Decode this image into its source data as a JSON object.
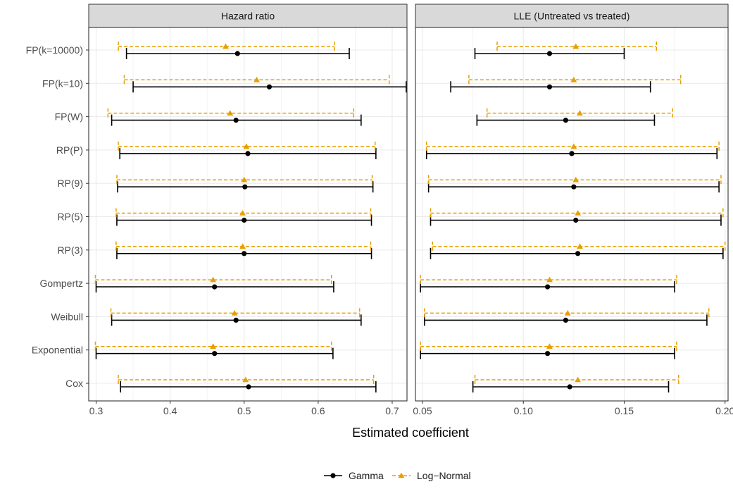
{
  "chart_data": {
    "type": "errorbar",
    "xlabel": "Estimated coefficient",
    "categories": [
      "FP(k=10000)",
      "FP(k=10)",
      "FP(W)",
      "RP(P)",
      "RP(9)",
      "RP(5)",
      "RP(3)",
      "Gompertz",
      "Weibull",
      "Exponential",
      "Cox"
    ],
    "legend": {
      "placement": "bottom",
      "entries": [
        {
          "name": "Gamma",
          "color": "#000000",
          "marker": "circle",
          "line": "solid"
        },
        {
          "name": "Log−Normal",
          "color": "#E69F00",
          "marker": "triangle",
          "line": "dashed"
        }
      ]
    },
    "panels": [
      {
        "strip": "Hazard ratio",
        "xlim": [
          0.29,
          0.72
        ],
        "ticks": [
          0.3,
          0.4,
          0.5,
          0.6,
          0.7
        ],
        "tick_labels": [
          "0.3",
          "0.4",
          "0.5",
          "0.6",
          "0.7"
        ],
        "series": [
          {
            "name": "Gamma",
            "values": [
              {
                "est": 0.491,
                "lo": 0.341,
                "hi": 0.642
              },
              {
                "est": 0.534,
                "lo": 0.35,
                "hi": 0.719
              },
              {
                "est": 0.489,
                "lo": 0.321,
                "hi": 0.658
              },
              {
                "est": 0.505,
                "lo": 0.332,
                "hi": 0.678
              },
              {
                "est": 0.501,
                "lo": 0.329,
                "hi": 0.674
              },
              {
                "est": 0.5,
                "lo": 0.328,
                "hi": 0.672
              },
              {
                "est": 0.5,
                "lo": 0.328,
                "hi": 0.672
              },
              {
                "est": 0.46,
                "lo": 0.3,
                "hi": 0.621
              },
              {
                "est": 0.489,
                "lo": 0.321,
                "hi": 0.658
              },
              {
                "est": 0.46,
                "lo": 0.3,
                "hi": 0.62
              },
              {
                "est": 0.506,
                "lo": 0.333,
                "hi": 0.678
              }
            ]
          },
          {
            "name": "Log−Normal",
            "values": [
              {
                "est": 0.475,
                "lo": 0.33,
                "hi": 0.622
              },
              {
                "est": 0.517,
                "lo": 0.338,
                "hi": 0.696
              },
              {
                "est": 0.481,
                "lo": 0.316,
                "hi": 0.648
              },
              {
                "est": 0.503,
                "lo": 0.33,
                "hi": 0.677
              },
              {
                "est": 0.5,
                "lo": 0.328,
                "hi": 0.673
              },
              {
                "est": 0.498,
                "lo": 0.327,
                "hi": 0.671
              },
              {
                "est": 0.498,
                "lo": 0.327,
                "hi": 0.671
              },
              {
                "est": 0.458,
                "lo": 0.299,
                "hi": 0.618
              },
              {
                "est": 0.487,
                "lo": 0.32,
                "hi": 0.656
              },
              {
                "est": 0.458,
                "lo": 0.299,
                "hi": 0.618
              },
              {
                "est": 0.502,
                "lo": 0.33,
                "hi": 0.675
              }
            ]
          }
        ]
      },
      {
        "strip": "LLE (Untreated vs treated)",
        "xlim": [
          0.0465,
          0.2015
        ],
        "ticks": [
          0.05,
          0.1,
          0.15,
          0.2
        ],
        "tick_labels": [
          "0.05",
          "0.10",
          "0.15",
          "0.20"
        ],
        "series": [
          {
            "name": "Gamma",
            "values": [
              {
                "est": 0.113,
                "lo": 0.076,
                "hi": 0.15
              },
              {
                "est": 0.113,
                "lo": 0.064,
                "hi": 0.163
              },
              {
                "est": 0.121,
                "lo": 0.077,
                "hi": 0.165
              },
              {
                "est": 0.124,
                "lo": 0.052,
                "hi": 0.196
              },
              {
                "est": 0.125,
                "lo": 0.053,
                "hi": 0.197
              },
              {
                "est": 0.126,
                "lo": 0.054,
                "hi": 0.198
              },
              {
                "est": 0.127,
                "lo": 0.054,
                "hi": 0.199
              },
              {
                "est": 0.112,
                "lo": 0.049,
                "hi": 0.175
              },
              {
                "est": 0.121,
                "lo": 0.051,
                "hi": 0.191
              },
              {
                "est": 0.112,
                "lo": 0.049,
                "hi": 0.175
              },
              {
                "est": 0.123,
                "lo": 0.075,
                "hi": 0.172
              }
            ]
          },
          {
            "name": "Log−Normal",
            "values": [
              {
                "est": 0.126,
                "lo": 0.087,
                "hi": 0.166
              },
              {
                "est": 0.125,
                "lo": 0.073,
                "hi": 0.178
              },
              {
                "est": 0.128,
                "lo": 0.082,
                "hi": 0.174
              },
              {
                "est": 0.125,
                "lo": 0.052,
                "hi": 0.197
              },
              {
                "est": 0.126,
                "lo": 0.053,
                "hi": 0.198
              },
              {
                "est": 0.127,
                "lo": 0.054,
                "hi": 0.199
              },
              {
                "est": 0.128,
                "lo": 0.055,
                "hi": 0.2
              },
              {
                "est": 0.113,
                "lo": 0.049,
                "hi": 0.176
              },
              {
                "est": 0.122,
                "lo": 0.051,
                "hi": 0.192
              },
              {
                "est": 0.113,
                "lo": 0.049,
                "hi": 0.176
              },
              {
                "est": 0.127,
                "lo": 0.076,
                "hi": 0.177
              }
            ]
          }
        ]
      }
    ]
  }
}
